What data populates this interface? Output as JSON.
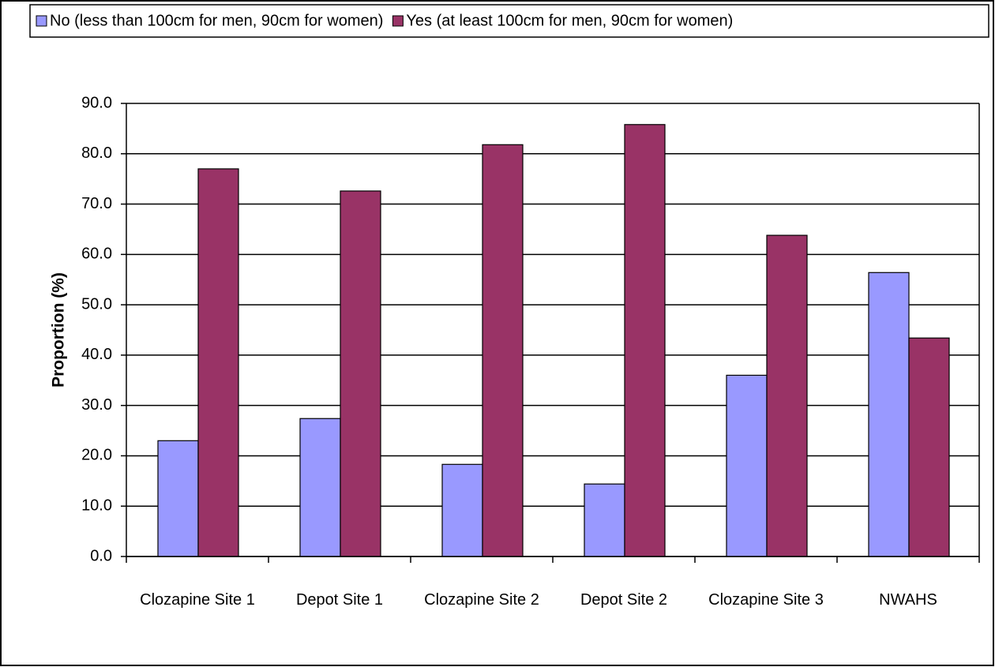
{
  "chart_data": {
    "type": "bar",
    "y_label": "Proportion (%)",
    "categories": [
      "Clozapine Site 1",
      "Depot Site 1",
      "Clozapine Site 2",
      "Depot Site 2",
      "Clozapine Site 3",
      "NWAHS"
    ],
    "series": [
      {
        "name": "No (less than 100cm for men, 90cm for women)",
        "color": "#9999ff",
        "values": [
          23.0,
          27.4,
          18.3,
          14.4,
          36.0,
          56.4
        ]
      },
      {
        "name": "Yes (at least 100cm for men, 90cm for women)",
        "color": "#993366",
        "values": [
          77.0,
          72.6,
          81.8,
          85.8,
          63.8,
          43.4
        ]
      }
    ],
    "ylim": [
      0,
      90
    ],
    "yticks": [
      {
        "value": 0,
        "label": "0.0"
      },
      {
        "value": 10,
        "label": "10.0"
      },
      {
        "value": 20,
        "label": "20.0"
      },
      {
        "value": 30,
        "label": "30.0"
      },
      {
        "value": 40,
        "label": "40.0"
      },
      {
        "value": 50,
        "label": "50.0"
      },
      {
        "value": 60,
        "label": "60.0"
      },
      {
        "value": 70,
        "label": "70.0"
      },
      {
        "value": 80,
        "label": "80.0"
      },
      {
        "value": 90,
        "label": "90.0"
      }
    ],
    "grid": true,
    "legend": "top"
  }
}
